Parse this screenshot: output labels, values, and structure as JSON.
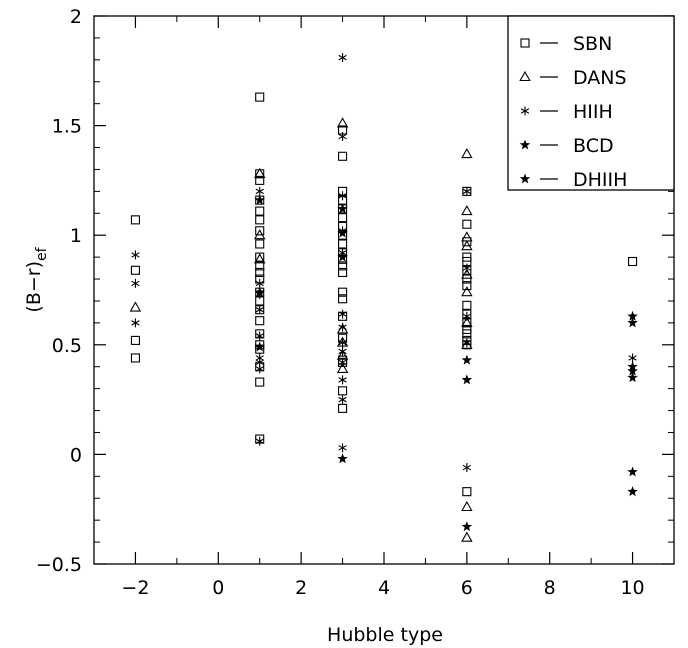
{
  "chart_data": {
    "type": "scatter",
    "title": "",
    "xlabel": "Hubble type",
    "ylabel": "(B−r)",
    "ylabel_sub": "ef",
    "xlim": [
      -3,
      11
    ],
    "ylim": [
      -0.5,
      2
    ],
    "x_ticks": [
      -2,
      0,
      2,
      4,
      6,
      8,
      10
    ],
    "x_tick_labels": [
      "−2",
      "0",
      "2",
      "4",
      "6",
      "8",
      "10"
    ],
    "y_ticks": [
      -0.5,
      0,
      0.5,
      1,
      1.5,
      2
    ],
    "y_tick_labels": [
      "−0.5",
      "0",
      "0.5",
      "1",
      "1.5",
      "2"
    ],
    "grid": false,
    "legend_position": "top-right",
    "legend": [
      {
        "marker": "square",
        "label": "SBN"
      },
      {
        "marker": "triangle",
        "label": "DANS"
      },
      {
        "marker": "asterisk",
        "label": "HIIH"
      },
      {
        "marker": "star",
        "label": "BCD"
      },
      {
        "marker": "star",
        "label": "DHIIH"
      }
    ],
    "series": [
      {
        "name": "SBN",
        "marker": "square",
        "points": [
          [
            -2,
            1.07
          ],
          [
            -2,
            0.84
          ],
          [
            -2,
            0.52
          ],
          [
            -2,
            0.44
          ],
          [
            1,
            1.63
          ],
          [
            1,
            1.28
          ],
          [
            1,
            1.25
          ],
          [
            1,
            1.16
          ],
          [
            1,
            1.11
          ],
          [
            1,
            1.07
          ],
          [
            1,
            1.02
          ],
          [
            1,
            0.96
          ],
          [
            1,
            0.9
          ],
          [
            1,
            0.86
          ],
          [
            1,
            0.83
          ],
          [
            1,
            0.8
          ],
          [
            1,
            0.74
          ],
          [
            1,
            0.7
          ],
          [
            1,
            0.66
          ],
          [
            1,
            0.61
          ],
          [
            1,
            0.55
          ],
          [
            1,
            0.5
          ],
          [
            1,
            0.48
          ],
          [
            1,
            0.4
          ],
          [
            1,
            0.33
          ],
          [
            1,
            0.07
          ],
          [
            3,
            1.48
          ],
          [
            3,
            1.36
          ],
          [
            3,
            1.2
          ],
          [
            3,
            1.16
          ],
          [
            3,
            1.12
          ],
          [
            3,
            1.08
          ],
          [
            3,
            1.04
          ],
          [
            3,
            1.0
          ],
          [
            3,
            0.96
          ],
          [
            3,
            0.92
          ],
          [
            3,
            0.89
          ],
          [
            3,
            0.86
          ],
          [
            3,
            0.83
          ],
          [
            3,
            0.74
          ],
          [
            3,
            0.71
          ],
          [
            3,
            0.63
          ],
          [
            3,
            0.53
          ],
          [
            3,
            0.43
          ],
          [
            3,
            0.42
          ],
          [
            3,
            0.29
          ],
          [
            3,
            0.21
          ],
          [
            6,
            1.2
          ],
          [
            6,
            1.05
          ],
          [
            6,
            0.97
          ],
          [
            6,
            0.9
          ],
          [
            6,
            0.88
          ],
          [
            6,
            0.84
          ],
          [
            6,
            0.8
          ],
          [
            6,
            0.77
          ],
          [
            6,
            0.68
          ],
          [
            6,
            0.64
          ],
          [
            6,
            0.6
          ],
          [
            6,
            0.57
          ],
          [
            6,
            0.55
          ],
          [
            6,
            0.52
          ],
          [
            6,
            0.5
          ],
          [
            6,
            -0.17
          ],
          [
            10,
            0.88
          ]
        ]
      },
      {
        "name": "DANS",
        "marker": "triangle",
        "points": [
          [
            -2,
            0.67
          ],
          [
            1,
            1.28
          ],
          [
            1,
            1.0
          ],
          [
            1,
            0.89
          ],
          [
            3,
            1.51
          ],
          [
            3,
            0.57
          ],
          [
            3,
            0.51
          ],
          [
            3,
            0.45
          ],
          [
            3,
            0.39
          ],
          [
            6,
            1.37
          ],
          [
            6,
            1.11
          ],
          [
            6,
            0.99
          ],
          [
            6,
            0.95
          ],
          [
            6,
            0.82
          ],
          [
            6,
            0.74
          ],
          [
            6,
            0.6
          ],
          [
            6,
            0.5
          ],
          [
            6,
            -0.24
          ],
          [
            6,
            -0.38
          ]
        ]
      },
      {
        "name": "HIIH",
        "marker": "asterisk",
        "points": [
          [
            -2,
            0.91
          ],
          [
            -2,
            0.78
          ],
          [
            -2,
            0.6
          ],
          [
            1,
            1.2
          ],
          [
            1,
            0.78
          ],
          [
            1,
            0.73
          ],
          [
            1,
            0.66
          ],
          [
            1,
            0.54
          ],
          [
            1,
            0.44
          ],
          [
            1,
            0.42
          ],
          [
            1,
            0.39
          ],
          [
            1,
            0.06
          ],
          [
            3,
            1.81
          ],
          [
            3,
            1.45
          ],
          [
            3,
            1.18
          ],
          [
            3,
            1.02
          ],
          [
            3,
            0.92
          ],
          [
            3,
            0.64
          ],
          [
            3,
            0.58
          ],
          [
            3,
            0.51
          ],
          [
            3,
            0.47
          ],
          [
            3,
            0.42
          ],
          [
            3,
            0.34
          ],
          [
            3,
            0.25
          ],
          [
            3,
            0.03
          ],
          [
            6,
            1.2
          ],
          [
            6,
            0.85
          ],
          [
            6,
            0.63
          ],
          [
            6,
            0.51
          ],
          [
            6,
            -0.06
          ],
          [
            10,
            0.44
          ]
        ]
      },
      {
        "name": "BCD",
        "marker": "star",
        "points": [
          [
            1,
            1.16
          ],
          [
            1,
            0.74
          ],
          [
            1,
            0.49
          ],
          [
            3,
            1.12
          ],
          [
            3,
            1.01
          ],
          [
            3,
            0.9
          ],
          [
            3,
            -0.02
          ],
          [
            6,
            0.43
          ],
          [
            6,
            0.34
          ],
          [
            6,
            -0.33
          ],
          [
            10,
            0.63
          ],
          [
            10,
            0.6
          ],
          [
            10,
            0.4
          ],
          [
            10,
            0.38
          ],
          [
            10,
            0.35
          ],
          [
            10,
            -0.08
          ],
          [
            10,
            -0.17
          ]
        ]
      },
      {
        "name": "DHIIH",
        "marker": "star",
        "points": []
      }
    ]
  }
}
